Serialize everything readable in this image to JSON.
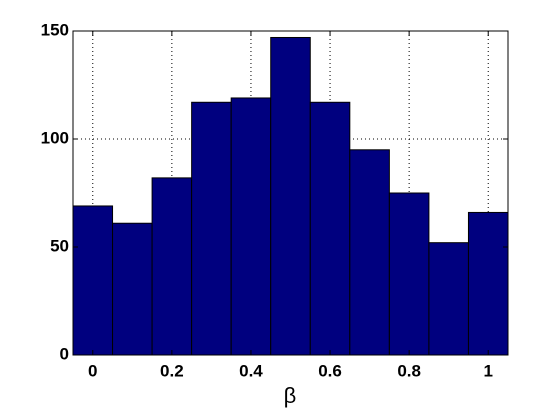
{
  "chart_data": {
    "type": "histogram",
    "xlabel": "β",
    "bins": [
      -0.05,
      0.05,
      0.15,
      0.25,
      0.35,
      0.45,
      0.55,
      0.65,
      0.75,
      0.85,
      0.95,
      1.05
    ],
    "values": [
      69,
      61,
      82,
      117,
      119,
      147,
      117,
      95,
      75,
      52,
      66
    ],
    "color": "#00007f",
    "xlim": [
      -0.05,
      1.05
    ],
    "xticks": [
      0,
      0.2,
      0.4,
      0.6,
      0.8,
      1
    ],
    "ylim": [
      0,
      150
    ],
    "yticks": [
      0,
      50,
      100,
      150
    ],
    "grid": true
  }
}
